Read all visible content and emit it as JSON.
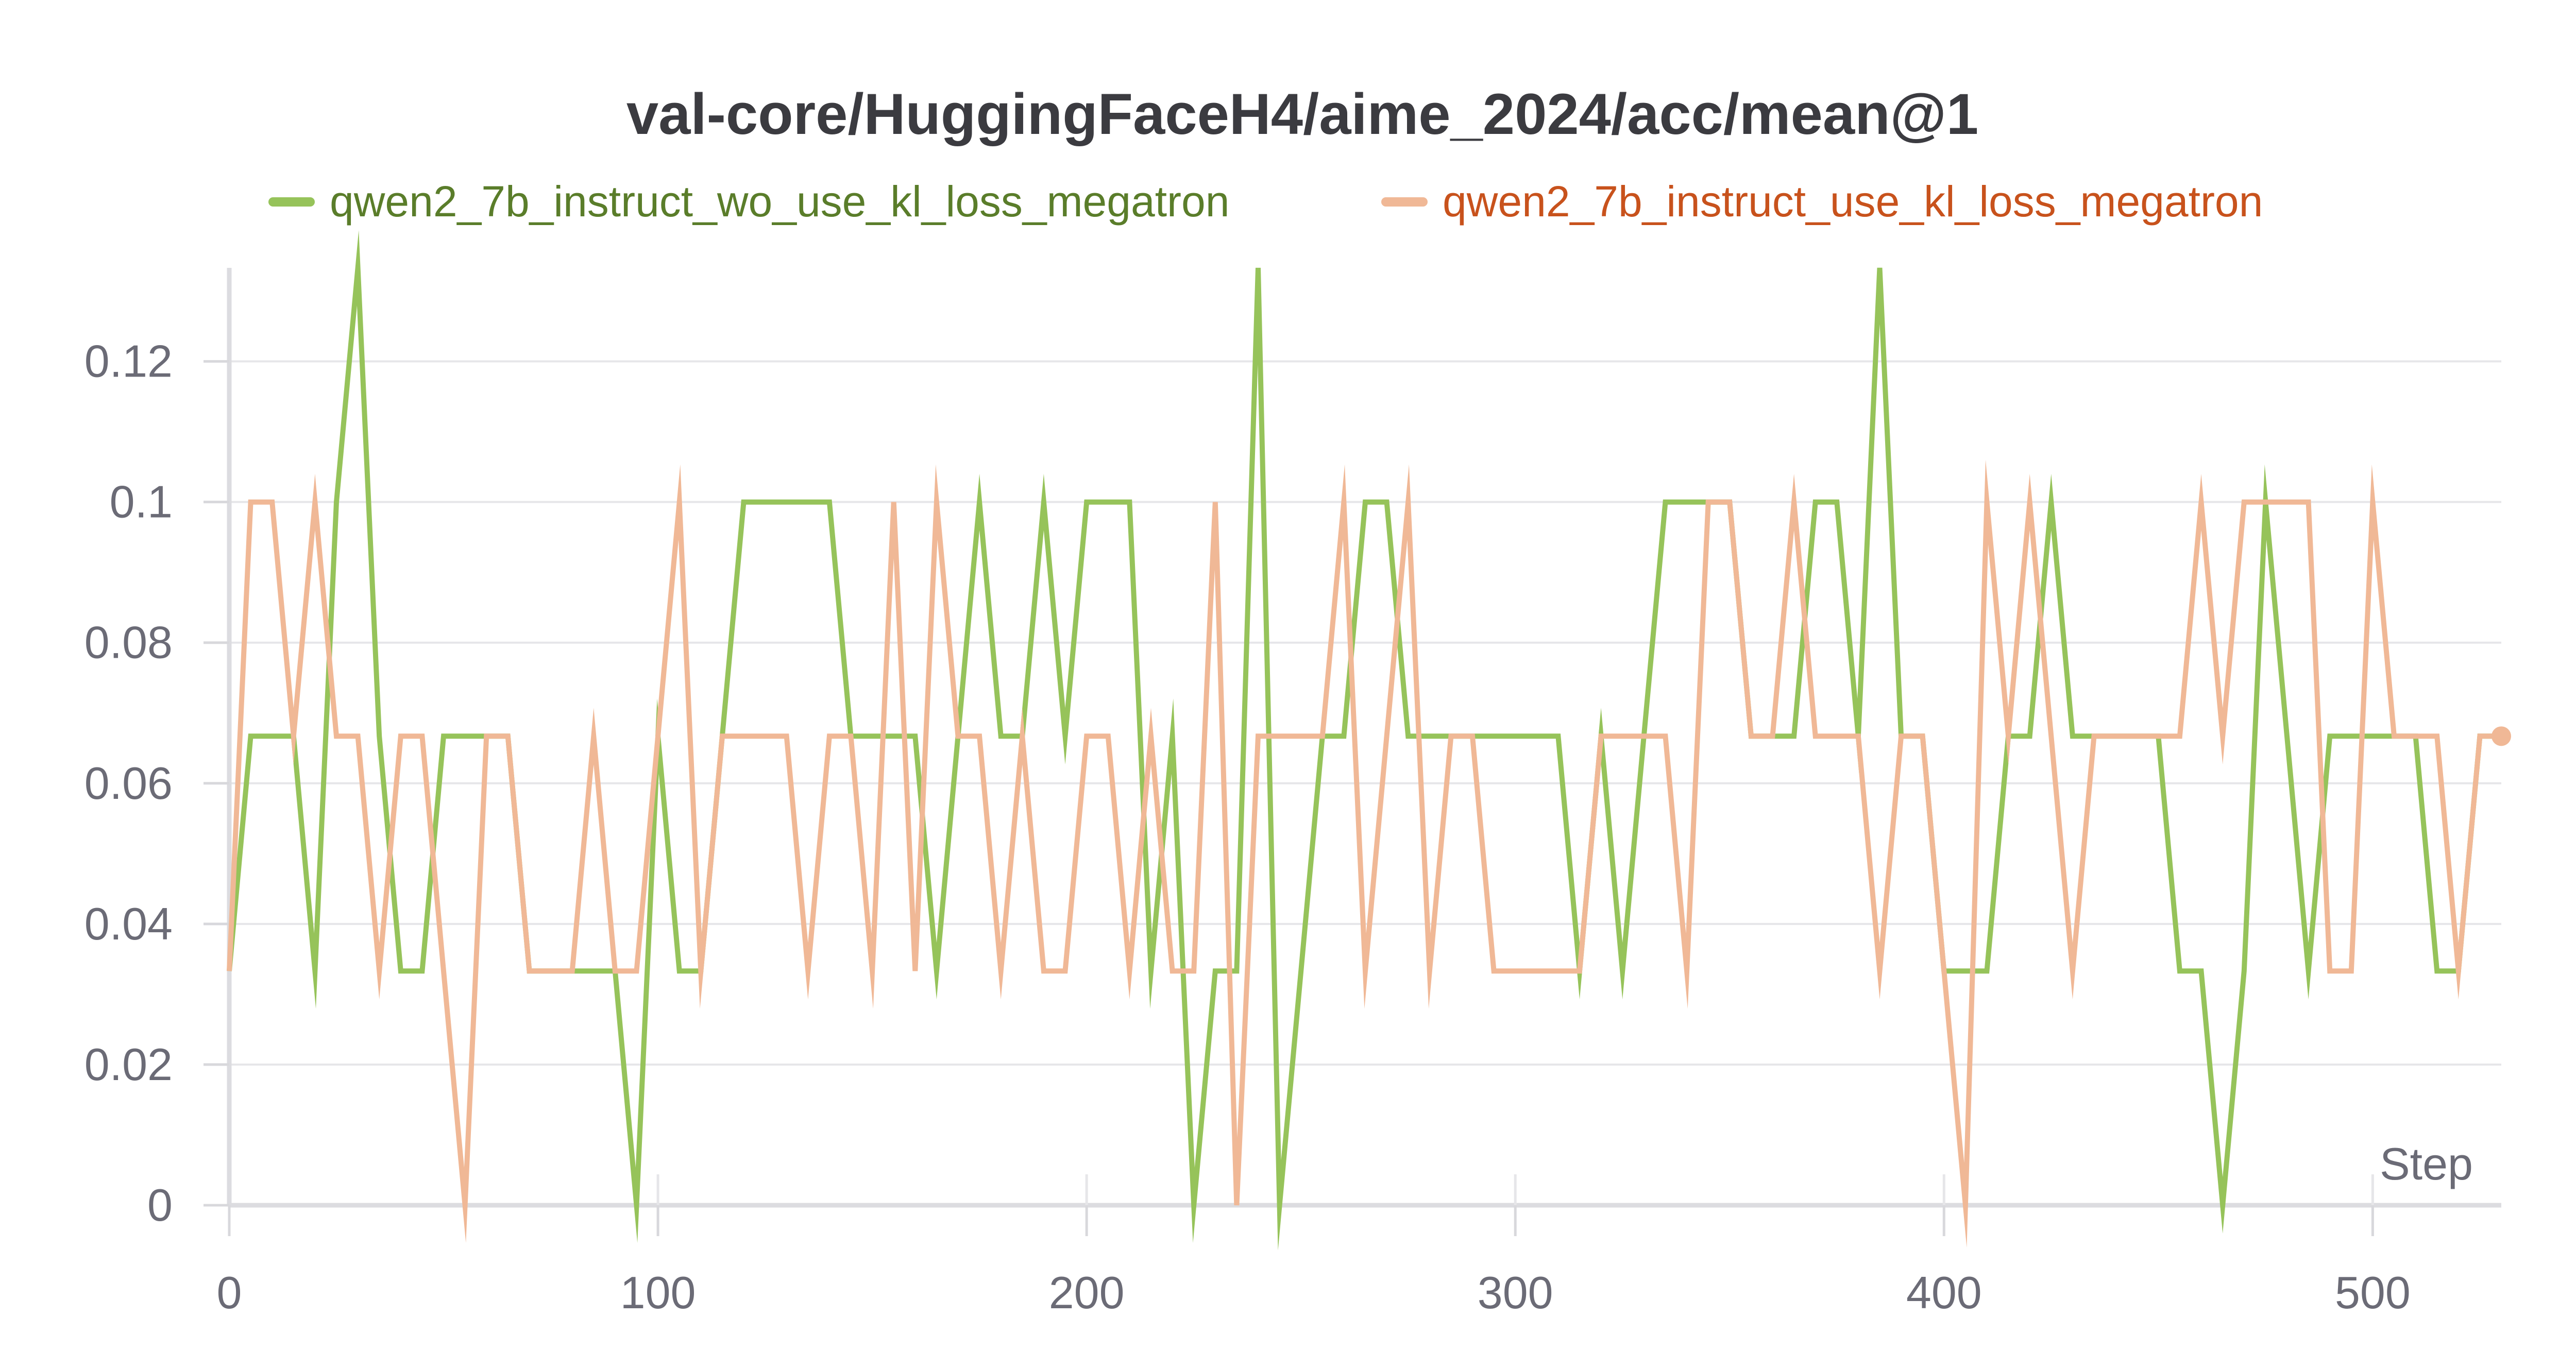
{
  "chart_data": {
    "type": "line",
    "title": "val-core/HuggingFaceH4/aime_2024/acc/mean@1",
    "xlabel": "Step",
    "ylabel": "",
    "xlim": [
      0,
      530
    ],
    "ylim": [
      0,
      0.1333
    ],
    "x_ticks": [
      "0",
      "100",
      "200",
      "300",
      "400",
      "500"
    ],
    "y_ticks": [
      "0",
      "0.02",
      "0.04",
      "0.06",
      "0.08",
      "0.1",
      "0.12"
    ],
    "grid": true,
    "legend_position": "top",
    "series": [
      {
        "name": "qwen2_7b_instruct_wo_use_kl_loss_megatron",
        "color": "#96c35a",
        "legend_text_color": "#5a7d2a",
        "x": [
          0,
          5,
          10,
          15,
          20,
          25,
          30,
          35,
          40,
          45,
          50,
          55,
          60,
          65,
          70,
          75,
          80,
          85,
          90,
          95,
          100,
          105,
          110,
          115,
          120,
          125,
          130,
          135,
          140,
          145,
          150,
          155,
          160,
          165,
          170,
          175,
          180,
          185,
          190,
          195,
          200,
          205,
          210,
          215,
          220,
          225,
          230,
          235,
          240,
          245,
          250,
          255,
          260,
          265,
          270,
          275,
          280,
          285,
          290,
          295,
          300,
          305,
          310,
          315,
          320,
          325,
          330,
          335,
          340,
          345,
          350,
          355,
          360,
          365,
          370,
          375,
          380,
          385,
          390,
          395,
          400,
          405,
          410,
          415,
          420,
          425,
          430,
          435,
          440,
          445,
          450,
          455,
          460,
          465,
          470,
          475,
          480,
          485,
          490,
          495,
          500,
          505,
          510,
          515,
          520,
          525,
          530
        ],
        "values": [
          0.0333,
          0.0667,
          0.0667,
          0.0667,
          0.0333,
          0.1,
          0.1333,
          0.0667,
          0.0333,
          0.0333,
          0.0667,
          0.0667,
          0.0667,
          0.0667,
          0.0333,
          0.0333,
          0.0333,
          0.0333,
          0.0333,
          0.0,
          0.0667,
          0.0333,
          0.0333,
          0.0667,
          0.1,
          0.1,
          0.1,
          0.1,
          0.1,
          0.0667,
          0.0667,
          0.0667,
          0.0667,
          0.0333,
          0.0667,
          0.1,
          0.0667,
          0.0667,
          0.1,
          0.0667,
          0.1,
          0.1,
          0.1,
          0.0333,
          0.0667,
          0.0,
          0.0333,
          0.0333,
          0.1333,
          0.0,
          0.0333,
          0.0667,
          0.0667,
          0.1,
          0.1,
          0.0667,
          0.0667,
          0.0667,
          0.0667,
          0.0667,
          0.0667,
          0.0667,
          0.0667,
          0.0333,
          0.0667,
          0.0333,
          0.0667,
          0.1,
          0.1,
          0.1,
          0.1,
          0.0667,
          0.0667,
          0.0667,
          0.1,
          0.1,
          0.0667,
          0.1333,
          0.0667,
          0.0667,
          0.0333,
          0.0333,
          0.0333,
          0.0667,
          0.0667,
          0.1,
          0.0667,
          0.0667,
          0.0667,
          0.0667,
          0.0667,
          0.0333,
          0.0333,
          0.0,
          0.0333,
          0.1,
          0.0667,
          0.0333,
          0.0667,
          0.0667,
          0.0667,
          0.0667,
          0.0667,
          0.0333,
          0.0333,
          0.0667,
          0.0667
        ]
      },
      {
        "name": "qwen2_7b_instruct_use_kl_loss_megatron",
        "color": "#f0b896",
        "legend_text_color": "#c8521c",
        "x": [
          0,
          5,
          10,
          15,
          20,
          25,
          30,
          35,
          40,
          45,
          50,
          55,
          60,
          65,
          70,
          75,
          80,
          85,
          90,
          95,
          100,
          105,
          110,
          115,
          120,
          125,
          130,
          135,
          140,
          145,
          150,
          155,
          160,
          165,
          170,
          175,
          180,
          185,
          190,
          195,
          200,
          205,
          210,
          215,
          220,
          225,
          230,
          235,
          240,
          245,
          250,
          255,
          260,
          265,
          270,
          275,
          280,
          285,
          290,
          295,
          300,
          305,
          310,
          315,
          320,
          325,
          330,
          335,
          340,
          345,
          350,
          355,
          360,
          365,
          370,
          375,
          380,
          385,
          390,
          395,
          400,
          405,
          410,
          415,
          420,
          425,
          430,
          435,
          440,
          445,
          450,
          455,
          460,
          465,
          470,
          475,
          480,
          485,
          490,
          495,
          500,
          505,
          510,
          515,
          520,
          525,
          530
        ],
        "values": [
          0.0333,
          0.1,
          0.1,
          0.0667,
          0.1,
          0.0667,
          0.0667,
          0.0333,
          0.0667,
          0.0667,
          0.0333,
          0.0,
          0.0667,
          0.0667,
          0.0333,
          0.0333,
          0.0333,
          0.0667,
          0.0333,
          0.0333,
          0.0667,
          0.1,
          0.0333,
          0.0667,
          0.0667,
          0.0667,
          0.0667,
          0.0333,
          0.0667,
          0.0667,
          0.0333,
          0.1,
          0.0333,
          0.1,
          0.0667,
          0.0667,
          0.0333,
          0.0667,
          0.0333,
          0.0333,
          0.0667,
          0.0667,
          0.0333,
          0.0667,
          0.0333,
          0.0333,
          0.1,
          0.0,
          0.0667,
          0.0667,
          0.0667,
          0.0667,
          0.1,
          0.0333,
          0.0667,
          0.1,
          0.0333,
          0.0667,
          0.0667,
          0.0333,
          0.0333,
          0.0333,
          0.0333,
          0.0333,
          0.0667,
          0.0667,
          0.0667,
          0.0667,
          0.0333,
          0.1,
          0.1,
          0.0667,
          0.0667,
          0.1,
          0.0667,
          0.0667,
          0.0667,
          0.0333,
          0.0667,
          0.0667,
          0.0333,
          0.0,
          0.1,
          0.0667,
          0.1,
          0.0667,
          0.0333,
          0.0667,
          0.0667,
          0.0667,
          0.0667,
          0.0667,
          0.1,
          0.0667,
          0.1,
          0.1,
          0.1,
          0.1,
          0.0333,
          0.0333,
          0.1,
          0.0667,
          0.0667,
          0.0667,
          0.0333,
          0.0667,
          0.0667
        ]
      }
    ]
  }
}
